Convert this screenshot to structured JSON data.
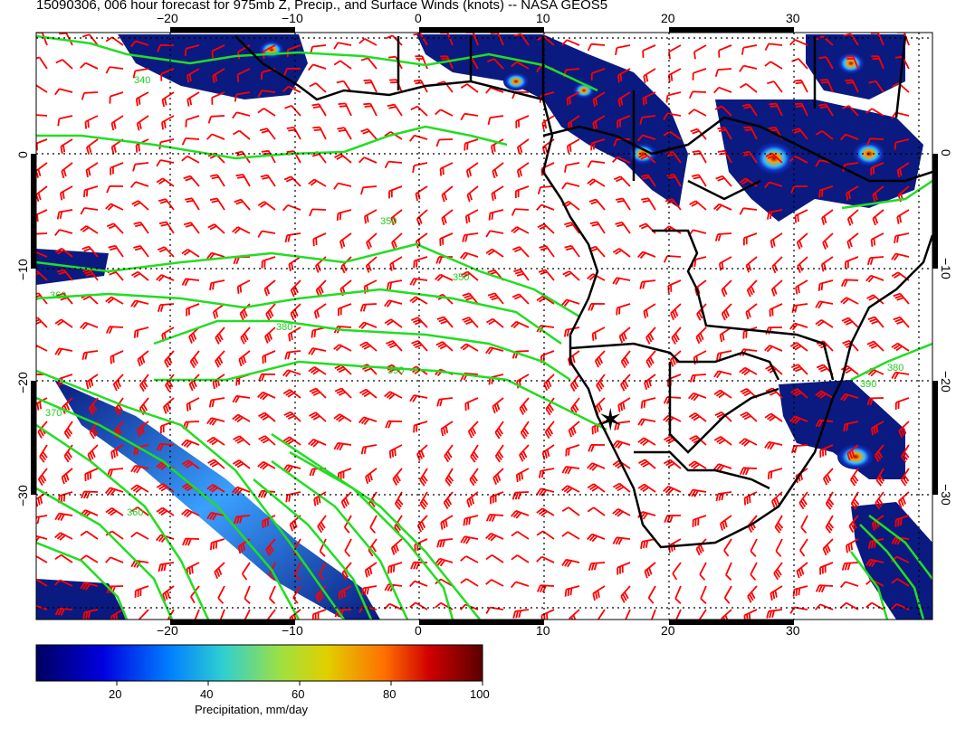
{
  "header": {
    "title": "15090306, 006 hour forecast for 975mb Z, Precip., and Surface Winds (knots) -- NASA GEOS5"
  },
  "map": {
    "lon_ticks": [
      "−20",
      "−10",
      "0",
      "10",
      "20",
      "30"
    ],
    "lat_ticks": [
      "0",
      "−10",
      "−20",
      "−30"
    ],
    "contour_labels": [
      "340",
      "350",
      "360",
      "370",
      "380",
      "390",
      "350",
      "360",
      "390",
      "380"
    ],
    "marker_symbol": "✶",
    "colors": {
      "coast": "#000000",
      "contour": "#22dd22",
      "wind_barb": "#ff0000",
      "grid": "#000000"
    }
  },
  "colorbar": {
    "tick_labels": [
      "20",
      "40",
      "60",
      "80",
      "100"
    ],
    "label": "Precipitation, mm/day",
    "range": [
      0,
      100
    ],
    "colors": [
      "#000080",
      "#0000ff",
      "#00c0ff",
      "#40e0a0",
      "#c0e020",
      "#ffb000",
      "#e03000",
      "#a00000",
      "#600000"
    ]
  }
}
